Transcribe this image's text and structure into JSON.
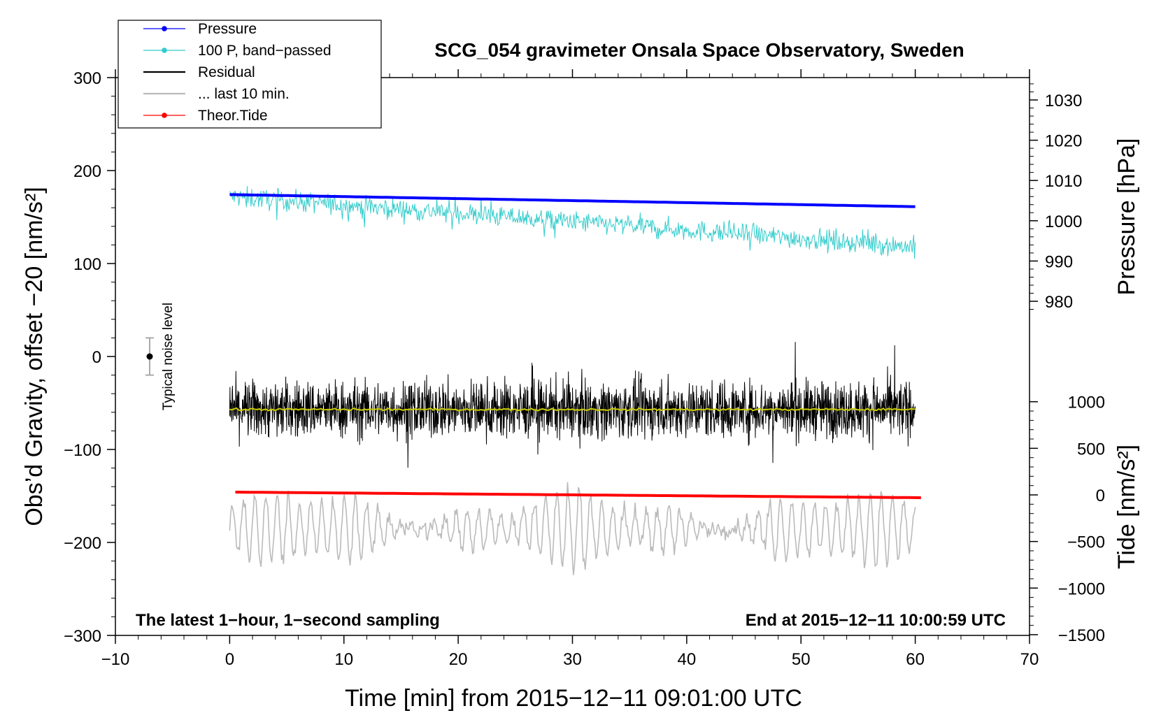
{
  "chart_data": {
    "type": "line",
    "title": "SCG_054 gravimeter Onsala Space Observatory, Sweden",
    "xlabel": "Time [min] from 2015−12−11 09:01:00 UTC",
    "ylabel_left": "Obs’d Gravity, offset −20 [nm/s²]",
    "ylabel_right_top": "Pressure [hPa]",
    "ylabel_right_bottom": "Tide [nm/s²]",
    "xlim": [
      -10,
      70
    ],
    "ylim_left": [
      -300,
      300
    ],
    "x_ticks": [
      -10,
      0,
      10,
      20,
      30,
      40,
      50,
      60,
      70
    ],
    "x_tick_labels": [
      "−10",
      "0",
      "10",
      "20",
      "30",
      "40",
      "50",
      "60",
      "70"
    ],
    "y_ticks_left": [
      300,
      200,
      100,
      0,
      -100,
      -200,
      -300
    ],
    "y_tick_labels_left": [
      "300",
      "200",
      "100",
      "0",
      "−100",
      "−200",
      "−300"
    ],
    "pressure_axis_ticks": [
      1030,
      1020,
      1010,
      1000,
      990,
      980
    ],
    "pressure_axis_labels": [
      "1030",
      "1020",
      "1010",
      "1000",
      "990",
      "980"
    ],
    "tide_axis_ticks": [
      1000,
      500,
      0,
      -500,
      -1000,
      -1500
    ],
    "tide_axis_labels": [
      "1000",
      "500",
      "0",
      "−500",
      "−1000",
      "−1500"
    ],
    "legend": [
      {
        "label": "Pressure",
        "color": "#0000ff",
        "marker": true
      },
      {
        "label": "100 P, band−passed",
        "color": "#33cccc",
        "marker": true
      },
      {
        "label": "Residual",
        "color": "#000000",
        "marker": false
      },
      {
        "label": "... last 10 min.",
        "color": "#bbbbbb",
        "marker": false
      },
      {
        "label": "Theor.Tide",
        "color": "#ff0000",
        "marker": true
      }
    ],
    "annotations": {
      "left": "The latest 1−hour, 1−second sampling",
      "right": "End at 2015−12−11 10:00:59 UTC"
    },
    "noise_label": "Typical noise level",
    "noise_level": {
      "x": -7,
      "center": 0,
      "half_range": 20
    },
    "series": [
      {
        "name": "Pressure",
        "axis": "pressure_hPa",
        "color": "#0000ff",
        "x_range": [
          0,
          60
        ],
        "start": 1006.5,
        "end": 1003.5
      },
      {
        "name": "100 P, band-passed",
        "axis": "gravity",
        "color": "#33cccc",
        "x_range": [
          0,
          60
        ],
        "start": 172,
        "end": 118,
        "noise_amplitude": 14
      },
      {
        "name": "Residual",
        "axis": "gravity",
        "color": "#000000",
        "x_range": [
          0,
          60
        ],
        "mean": -57,
        "noise_amplitude": 35
      },
      {
        "name": "Residual smoothed",
        "axis": "gravity",
        "color": "#cccc00",
        "x_range": [
          0,
          60
        ],
        "value": -57
      },
      {
        "name": "... last 10 min.",
        "axis": "gravity",
        "color": "#bbbbbb",
        "x_range": [
          0,
          60
        ],
        "mean": -185,
        "noise_amplitude": 40
      },
      {
        "name": "Theor.Tide",
        "axis": "tide_nm_s2",
        "color": "#ff0000",
        "x_range": [
          0.5,
          60.5
        ],
        "start": 30,
        "end": -30
      }
    ]
  }
}
